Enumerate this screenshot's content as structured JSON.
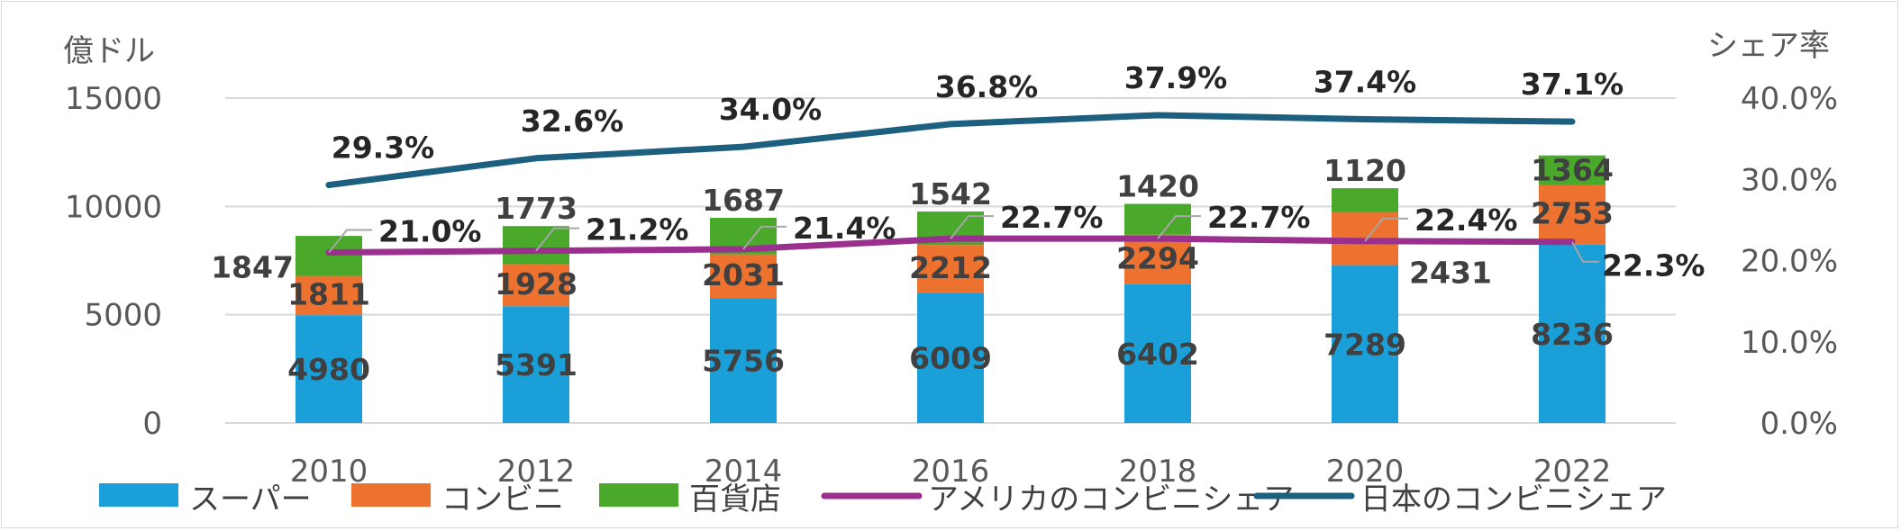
{
  "chart_data": {
    "type": "bar",
    "stacked": true,
    "categories": [
      "2010",
      "2012",
      "2014",
      "2016",
      "2018",
      "2020",
      "2022"
    ],
    "series": [
      {
        "name": "スーパー",
        "type": "bar",
        "axis": "left",
        "color": "#1a9fd9",
        "values": [
          4980,
          5391,
          5756,
          6009,
          6402,
          7289,
          8236
        ]
      },
      {
        "name": "コンビニ",
        "type": "bar",
        "axis": "left",
        "color": "#ed7230",
        "values": [
          1811,
          1928,
          2031,
          2212,
          2294,
          2431,
          2753
        ]
      },
      {
        "name": "百貨店",
        "type": "bar",
        "axis": "left",
        "color": "#4aa82b",
        "values": [
          1847,
          1773,
          1687,
          1542,
          1420,
          1120,
          1364
        ]
      },
      {
        "name": "アメリカのコンビニシェア",
        "type": "line",
        "axis": "right",
        "color": "#9a2f8e",
        "values": [
          21.0,
          21.2,
          21.4,
          22.7,
          22.7,
          22.4,
          22.3
        ],
        "labels": [
          "21.0%",
          "21.2%",
          "21.4%",
          "22.7%",
          "22.7%",
          "22.4%",
          "22.3%"
        ]
      },
      {
        "name": "日本のコンビニシェア",
        "type": "line",
        "axis": "right",
        "color": "#1c5f7e",
        "values": [
          29.3,
          32.6,
          34.0,
          36.8,
          37.9,
          37.4,
          37.1
        ],
        "labels": [
          "29.3%",
          "32.6%",
          "34.0%",
          "36.8%",
          "37.9%",
          "37.4%",
          "37.1%"
        ]
      }
    ],
    "ylabel": "億ドル",
    "y2label": "シェア率",
    "ylim": [
      0,
      15000
    ],
    "y2lim": [
      0,
      40
    ],
    "yticks": [
      "0",
      "5000",
      "10000",
      "15000"
    ],
    "y2ticks": [
      "0.0%",
      "10.0%",
      "20.0%",
      "30.0%",
      "40.0%"
    ],
    "grid": true,
    "legend_position": "bottom"
  }
}
